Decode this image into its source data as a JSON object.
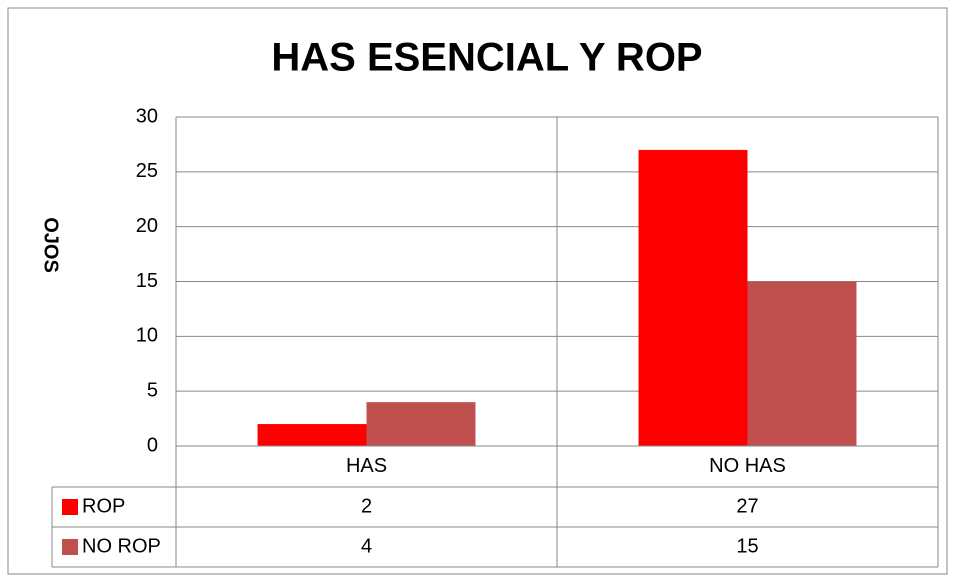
{
  "chart_data": {
    "type": "bar",
    "title": "HAS ESENCIAL Y ROP",
    "y_label": "OJOS",
    "categories": [
      "HAS",
      "NO HAS"
    ],
    "series": [
      {
        "name": "ROP",
        "color": "#ff0000",
        "values": [
          2,
          27
        ]
      },
      {
        "name": "NO ROP",
        "color": "#c0504d",
        "values": [
          4,
          15
        ]
      }
    ],
    "ylim": [
      0,
      30
    ],
    "yticks": [
      0,
      5,
      10,
      15,
      20,
      25,
      30
    ],
    "grid": true,
    "data_table": true
  }
}
